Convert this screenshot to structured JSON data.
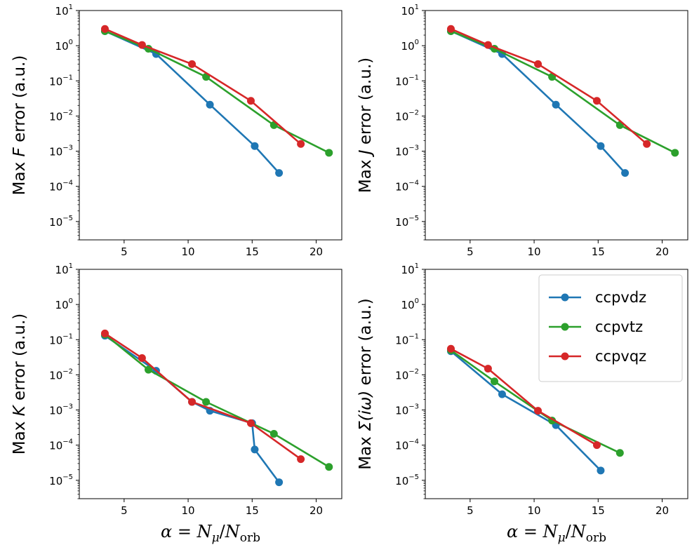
{
  "chart_data": [
    {
      "type": "line",
      "ylabel": "Max F error (a.u.)",
      "ylabel_parts": {
        "prefix": "Max ",
        "symbol": "F",
        "suffix": " error (a.u.)"
      },
      "xlabel": "",
      "yscale": "log",
      "xlim": [
        1.5,
        22.0
      ],
      "ylim": [
        3e-06,
        10
      ],
      "xticks": [
        5,
        10,
        15,
        20
      ],
      "yticks": [
        1e-05,
        0.0001,
        0.001,
        0.01,
        0.1,
        1,
        10
      ],
      "ytick_exponents": [
        "−5",
        "−4",
        "−3",
        "−2",
        "−1",
        "0",
        "1"
      ],
      "series": [
        {
          "name": "ccpvdz",
          "color": "#1f77b4",
          "x": [
            3.5,
            7.5,
            11.7,
            15.2,
            17.1
          ],
          "y": [
            2.6,
            0.58,
            0.021,
            0.0014,
            0.00024
          ]
        },
        {
          "name": "ccpvtz",
          "color": "#2ca02c",
          "x": [
            3.5,
            6.9,
            11.4,
            16.7,
            21.0
          ],
          "y": [
            2.6,
            0.82,
            0.13,
            0.0055,
            0.0009
          ]
        },
        {
          "name": "ccpvqz",
          "color": "#d62728",
          "x": [
            3.5,
            6.4,
            10.3,
            14.9,
            18.8
          ],
          "y": [
            3.0,
            1.05,
            0.3,
            0.027,
            0.0016
          ]
        }
      ]
    },
    {
      "type": "line",
      "ylabel": "Max J error (a.u.)",
      "ylabel_parts": {
        "prefix": "Max ",
        "symbol": "J",
        "suffix": " error (a.u.)"
      },
      "xlabel": "",
      "yscale": "log",
      "xlim": [
        1.5,
        22.0
      ],
      "ylim": [
        3e-06,
        10
      ],
      "xticks": [
        5,
        10,
        15,
        20
      ],
      "yticks": [
        1e-05,
        0.0001,
        0.001,
        0.01,
        0.1,
        1,
        10
      ],
      "ytick_exponents": [
        "−5",
        "−4",
        "−3",
        "−2",
        "−1",
        "0",
        "1"
      ],
      "series": [
        {
          "name": "ccpvdz",
          "color": "#1f77b4",
          "x": [
            3.5,
            7.5,
            11.7,
            15.2,
            17.1
          ],
          "y": [
            2.6,
            0.58,
            0.021,
            0.0014,
            0.00024
          ]
        },
        {
          "name": "ccpvtz",
          "color": "#2ca02c",
          "x": [
            3.5,
            6.9,
            11.4,
            16.7,
            21.0
          ],
          "y": [
            2.6,
            0.82,
            0.13,
            0.0055,
            0.0009
          ]
        },
        {
          "name": "ccpvqz",
          "color": "#d62728",
          "x": [
            3.5,
            6.4,
            10.3,
            14.9,
            18.8
          ],
          "y": [
            3.0,
            1.05,
            0.3,
            0.027,
            0.0016
          ]
        }
      ]
    },
    {
      "type": "line",
      "ylabel": "Max K error (a.u.)",
      "ylabel_parts": {
        "prefix": "Max ",
        "symbol": "K",
        "suffix": " error (a.u.)"
      },
      "xlabel": "α = Nμ/Norb",
      "yscale": "log",
      "xlim": [
        1.5,
        22.0
      ],
      "ylim": [
        3e-06,
        10
      ],
      "xticks": [
        5,
        10,
        15,
        20
      ],
      "yticks": [
        1e-05,
        0.0001,
        0.001,
        0.01,
        0.1,
        1,
        10
      ],
      "ytick_exponents": [
        "−5",
        "−4",
        "−3",
        "−2",
        "−1",
        "0",
        "1"
      ],
      "series": [
        {
          "name": "ccpvdz",
          "color": "#1f77b4",
          "x": [
            3.5,
            7.5,
            10.3,
            11.7,
            15.0,
            15.2,
            17.1
          ],
          "y": [
            0.13,
            0.013,
            0.0017,
            0.00095,
            0.00042,
            7.5e-05,
            8.8e-06
          ]
        },
        {
          "name": "ccpvtz",
          "color": "#2ca02c",
          "x": [
            3.5,
            6.9,
            11.4,
            16.7,
            21.0
          ],
          "y": [
            0.14,
            0.014,
            0.0017,
            0.00021,
            2.4e-05
          ]
        },
        {
          "name": "ccpvqz",
          "color": "#d62728",
          "x": [
            3.5,
            6.4,
            10.3,
            14.9,
            18.8
          ],
          "y": [
            0.15,
            0.03,
            0.0017,
            0.00042,
            4e-05
          ]
        }
      ]
    },
    {
      "type": "line",
      "ylabel": "Max Σ(iω) error (a.u.)",
      "ylabel_parts": {
        "prefix": "Max ",
        "symbol": "Σ(iω)",
        "suffix": " error (a.u.)"
      },
      "xlabel": "α = Nμ/Norb",
      "yscale": "log",
      "xlim": [
        1.5,
        22.0
      ],
      "ylim": [
        3e-06,
        10
      ],
      "xticks": [
        5,
        10,
        15,
        20
      ],
      "yticks": [
        1e-05,
        0.0001,
        0.001,
        0.01,
        0.1,
        1,
        10
      ],
      "ytick_exponents": [
        "−5",
        "−4",
        "−3",
        "−2",
        "−1",
        "0",
        "1"
      ],
      "legend": {
        "location": "upper right",
        "entries": [
          "ccpvdz",
          "ccpvtz",
          "ccpvqz"
        ]
      },
      "series": [
        {
          "name": "ccpvdz",
          "color": "#1f77b4",
          "x": [
            3.5,
            7.5,
            11.7,
            15.2
          ],
          "y": [
            0.047,
            0.0028,
            0.00037,
            1.9e-05
          ]
        },
        {
          "name": "ccpvtz",
          "color": "#2ca02c",
          "x": [
            3.5,
            6.9,
            11.4,
            16.7
          ],
          "y": [
            0.05,
            0.0065,
            0.0005,
            6e-05
          ]
        },
        {
          "name": "ccpvqz",
          "color": "#d62728",
          "x": [
            3.5,
            6.4,
            10.3,
            14.9
          ],
          "y": [
            0.055,
            0.015,
            0.00095,
            0.0001
          ]
        }
      ]
    }
  ]
}
